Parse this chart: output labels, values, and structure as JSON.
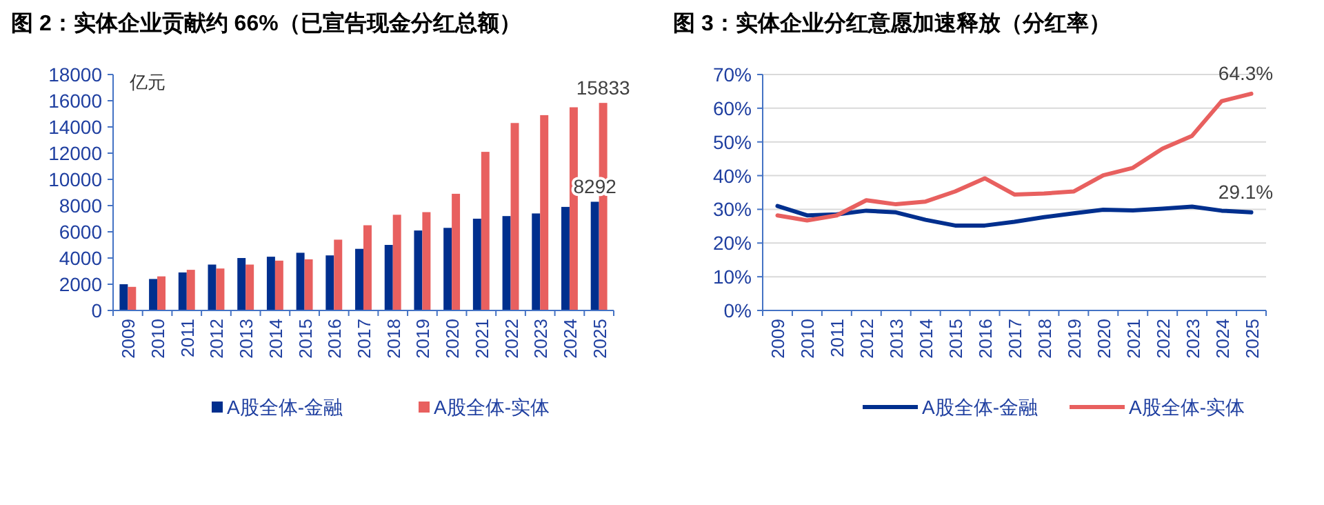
{
  "chart_data": [
    {
      "type": "bar",
      "title": "图 2：实体企业贡献约 66%（已宣告现金分红总额）",
      "ylabel": "亿元",
      "categories": [
        "2009",
        "2010",
        "2011",
        "2012",
        "2013",
        "2014",
        "2015",
        "2016",
        "2017",
        "2018",
        "2019",
        "2020",
        "2021",
        "2022",
        "2023",
        "2024",
        "2025"
      ],
      "series": [
        {
          "name": "A股全体-金融",
          "color": "#002f8e",
          "values": [
            2000,
            2400,
            2900,
            3500,
            4000,
            4100,
            4400,
            4200,
            4700,
            5000,
            6100,
            6300,
            7000,
            7200,
            7400,
            7900,
            8292
          ],
          "value_labels": [
            null,
            null,
            null,
            null,
            null,
            null,
            null,
            null,
            null,
            null,
            null,
            null,
            null,
            null,
            null,
            null,
            "8292"
          ]
        },
        {
          "name": "A股全体-实体",
          "color": "#e8605f",
          "values": [
            1800,
            2600,
            3100,
            3200,
            3500,
            3800,
            3900,
            5400,
            6500,
            7300,
            7500,
            8900,
            12100,
            14300,
            14900,
            15500,
            15833
          ],
          "value_labels": [
            null,
            null,
            null,
            null,
            null,
            null,
            null,
            null,
            null,
            null,
            null,
            null,
            null,
            null,
            null,
            null,
            "15833"
          ]
        }
      ],
      "ylim": [
        0,
        18000
      ],
      "yticks": [
        0,
        2000,
        4000,
        6000,
        8000,
        10000,
        12000,
        14000,
        16000,
        18000
      ],
      "grid": false,
      "legend": "bottom"
    },
    {
      "type": "line",
      "title": "图 3：实体企业分红意愿加速释放（分红率）",
      "categories": [
        "2009",
        "2010",
        "2011",
        "2012",
        "2013",
        "2014",
        "2015",
        "2016",
        "2017",
        "2018",
        "2019",
        "2020",
        "2021",
        "2022",
        "2023",
        "2024",
        "2025"
      ],
      "series": [
        {
          "name": "A股全体-金融",
          "color": "#002f8e",
          "values": [
            31.0,
            28.2,
            28.5,
            29.6,
            29.1,
            26.9,
            25.2,
            25.2,
            26.3,
            27.7,
            28.8,
            29.9,
            29.7,
            30.2,
            30.8,
            29.6,
            29.1
          ],
          "value_labels": [
            null,
            null,
            null,
            null,
            null,
            null,
            null,
            null,
            null,
            null,
            null,
            null,
            null,
            null,
            null,
            null,
            "29.1%"
          ]
        },
        {
          "name": "A股全体-实体",
          "color": "#e8605f",
          "values": [
            28.2,
            26.7,
            28.2,
            32.7,
            31.5,
            32.3,
            35.3,
            39.2,
            34.4,
            34.7,
            35.3,
            40.1,
            42.3,
            48.0,
            51.8,
            62.1,
            64.3
          ],
          "value_labels": [
            null,
            null,
            null,
            null,
            null,
            null,
            null,
            null,
            null,
            null,
            null,
            null,
            null,
            null,
            null,
            null,
            "64.3%"
          ]
        }
      ],
      "ylim": [
        0,
        70
      ],
      "yticks": [
        {
          "value": 0,
          "label": "0%"
        },
        {
          "value": 10,
          "label": "10%"
        },
        {
          "value": 20,
          "label": "20%"
        },
        {
          "value": 30,
          "label": "30%"
        },
        {
          "value": 40,
          "label": "40%"
        },
        {
          "value": 50,
          "label": "50%"
        },
        {
          "value": 60,
          "label": "60%"
        },
        {
          "value": 70,
          "label": "70%"
        }
      ],
      "grid": "y",
      "legend": "bottom",
      "marker": "none",
      "line_style": "solid"
    }
  ]
}
